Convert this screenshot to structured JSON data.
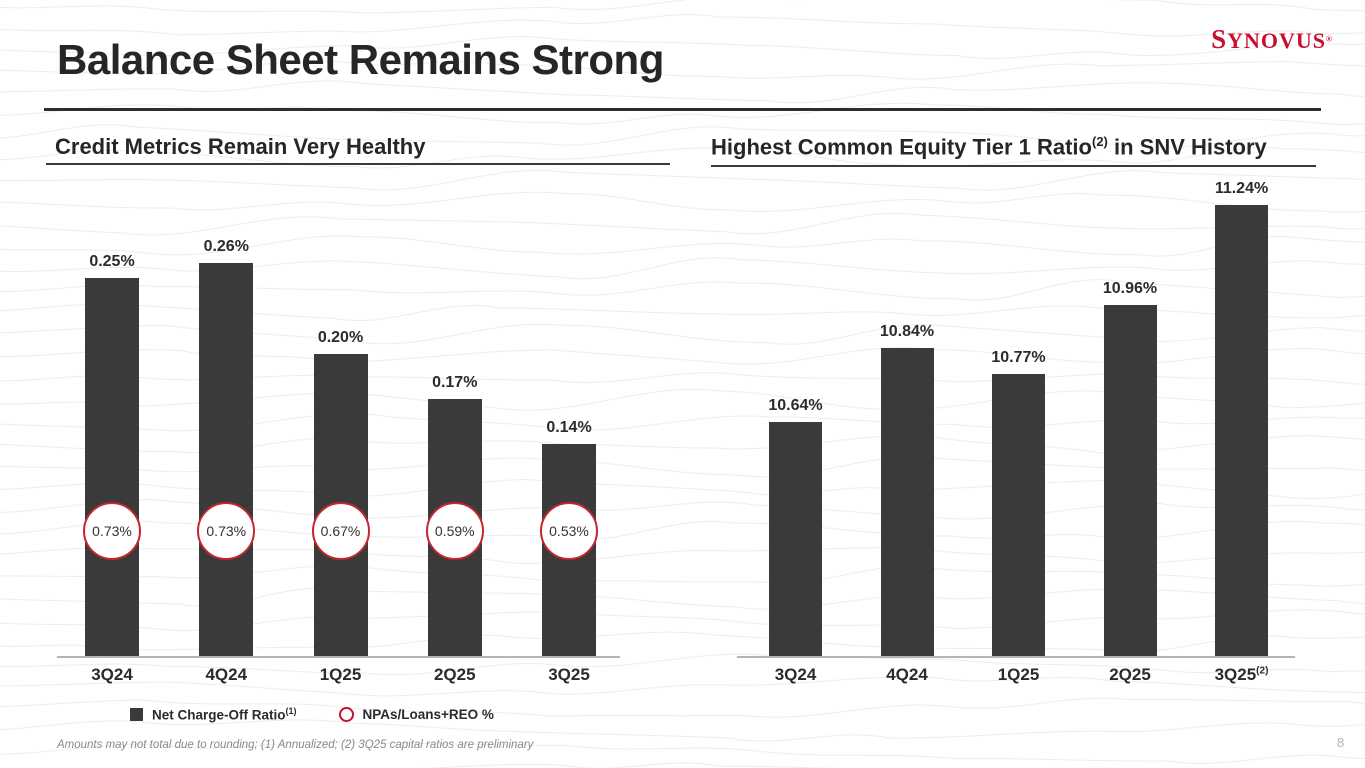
{
  "slide": {
    "title": "Balance Sheet Remains Strong",
    "logo": {
      "first": "S",
      "rest": "YNOVUS",
      "mark": "®"
    },
    "footnote": "Amounts may not total due to rounding; (1) Annualized; (2) 3Q25 capital ratios are preliminary",
    "page_number": "8"
  },
  "sections": {
    "left": {
      "title": "Credit Metrics Remain Very Healthy"
    },
    "right": {
      "title_pre": "Highest Common Equity Tier 1 Ratio",
      "title_sup": "(2)",
      "title_post": " in SNV History"
    }
  },
  "legend": {
    "items": [
      {
        "swatch": "square",
        "label": "Net Charge-Off Ratio",
        "sup": "(1)"
      },
      {
        "swatch": "circle-outline",
        "label": "NPAs/Loans+REO %",
        "sup": ""
      }
    ]
  },
  "colors": {
    "bar": "#3a3a3a",
    "accent_red": "#c8102e",
    "circle_border": "#c2272d",
    "axis": "#b5b5b5"
  },
  "chart_data": [
    {
      "type": "bar",
      "title": "Credit Metrics Remain Very Healthy",
      "categories": [
        "3Q24",
        "4Q24",
        "1Q25",
        "2Q25",
        "3Q25"
      ],
      "category_sups": [
        "",
        "",
        "",
        "",
        ""
      ],
      "series": [
        {
          "name": "Net Charge-Off Ratio (1)",
          "values": [
            0.25,
            0.26,
            0.2,
            0.17,
            0.14
          ],
          "labels": [
            "0.25%",
            "0.26%",
            "0.20%",
            "0.17%",
            "0.14%"
          ]
        },
        {
          "name": "NPAs/Loans+REO %",
          "values": [
            0.73,
            0.73,
            0.67,
            0.59,
            0.53
          ],
          "labels": [
            "0.73%",
            "0.73%",
            "0.67%",
            "0.59%",
            "0.53%"
          ]
        }
      ],
      "ylim": [
        0,
        0.26
      ],
      "unit": "%",
      "grid": false,
      "legend_position": "bottom"
    },
    {
      "type": "bar",
      "title": "Highest Common Equity Tier 1 Ratio (2) in SNV History",
      "categories": [
        "3Q24",
        "4Q24",
        "1Q25",
        "2Q25",
        "3Q25"
      ],
      "category_sups": [
        "",
        "",
        "",
        "",
        "(2)"
      ],
      "series": [
        {
          "name": "Common Equity Tier 1 Ratio",
          "values": [
            10.64,
            10.84,
            10.77,
            10.96,
            11.24
          ],
          "labels": [
            "10.64%",
            "10.84%",
            "10.77%",
            "10.96%",
            "11.24%"
          ]
        }
      ],
      "ylim": [
        10.0,
        11.24
      ],
      "unit": "%",
      "grid": false,
      "legend_position": "none"
    }
  ]
}
